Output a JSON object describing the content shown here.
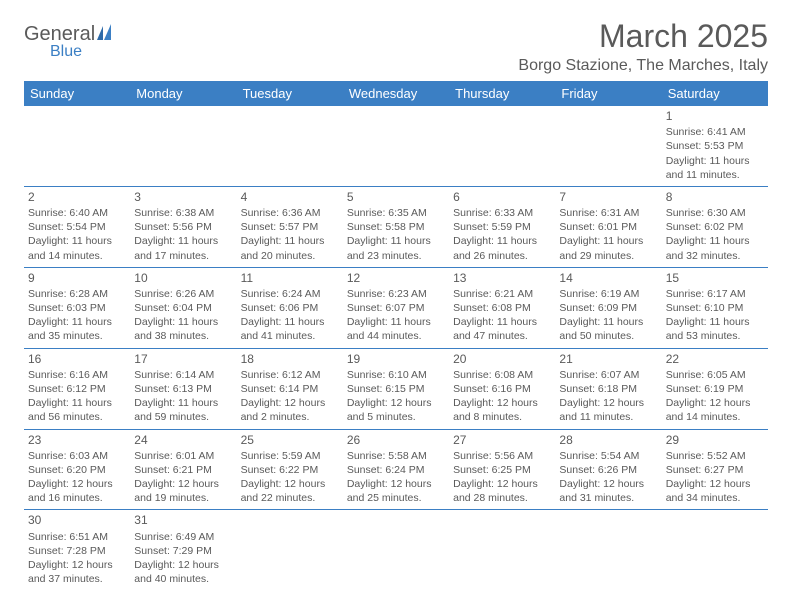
{
  "logo": {
    "text1": "General",
    "text2": "Blue"
  },
  "title": "March 2025",
  "location": "Borgo Stazione, The Marches, Italy",
  "colors": {
    "header_bg": "#3b7fc4",
    "header_text": "#ffffff",
    "body_text": "#5a5a5a",
    "rule": "#3b7fc4",
    "background": "#ffffff"
  },
  "dayHeaders": [
    "Sunday",
    "Monday",
    "Tuesday",
    "Wednesday",
    "Thursday",
    "Friday",
    "Saturday"
  ],
  "weeks": [
    [
      null,
      null,
      null,
      null,
      null,
      null,
      {
        "n": "1",
        "sr": "6:41 AM",
        "ss": "5:53 PM",
        "dl": "11 hours and 11 minutes."
      }
    ],
    [
      {
        "n": "2",
        "sr": "6:40 AM",
        "ss": "5:54 PM",
        "dl": "11 hours and 14 minutes."
      },
      {
        "n": "3",
        "sr": "6:38 AM",
        "ss": "5:56 PM",
        "dl": "11 hours and 17 minutes."
      },
      {
        "n": "4",
        "sr": "6:36 AM",
        "ss": "5:57 PM",
        "dl": "11 hours and 20 minutes."
      },
      {
        "n": "5",
        "sr": "6:35 AM",
        "ss": "5:58 PM",
        "dl": "11 hours and 23 minutes."
      },
      {
        "n": "6",
        "sr": "6:33 AM",
        "ss": "5:59 PM",
        "dl": "11 hours and 26 minutes."
      },
      {
        "n": "7",
        "sr": "6:31 AM",
        "ss": "6:01 PM",
        "dl": "11 hours and 29 minutes."
      },
      {
        "n": "8",
        "sr": "6:30 AM",
        "ss": "6:02 PM",
        "dl": "11 hours and 32 minutes."
      }
    ],
    [
      {
        "n": "9",
        "sr": "6:28 AM",
        "ss": "6:03 PM",
        "dl": "11 hours and 35 minutes."
      },
      {
        "n": "10",
        "sr": "6:26 AM",
        "ss": "6:04 PM",
        "dl": "11 hours and 38 minutes."
      },
      {
        "n": "11",
        "sr": "6:24 AM",
        "ss": "6:06 PM",
        "dl": "11 hours and 41 minutes."
      },
      {
        "n": "12",
        "sr": "6:23 AM",
        "ss": "6:07 PM",
        "dl": "11 hours and 44 minutes."
      },
      {
        "n": "13",
        "sr": "6:21 AM",
        "ss": "6:08 PM",
        "dl": "11 hours and 47 minutes."
      },
      {
        "n": "14",
        "sr": "6:19 AM",
        "ss": "6:09 PM",
        "dl": "11 hours and 50 minutes."
      },
      {
        "n": "15",
        "sr": "6:17 AM",
        "ss": "6:10 PM",
        "dl": "11 hours and 53 minutes."
      }
    ],
    [
      {
        "n": "16",
        "sr": "6:16 AM",
        "ss": "6:12 PM",
        "dl": "11 hours and 56 minutes."
      },
      {
        "n": "17",
        "sr": "6:14 AM",
        "ss": "6:13 PM",
        "dl": "11 hours and 59 minutes."
      },
      {
        "n": "18",
        "sr": "6:12 AM",
        "ss": "6:14 PM",
        "dl": "12 hours and 2 minutes."
      },
      {
        "n": "19",
        "sr": "6:10 AM",
        "ss": "6:15 PM",
        "dl": "12 hours and 5 minutes."
      },
      {
        "n": "20",
        "sr": "6:08 AM",
        "ss": "6:16 PM",
        "dl": "12 hours and 8 minutes."
      },
      {
        "n": "21",
        "sr": "6:07 AM",
        "ss": "6:18 PM",
        "dl": "12 hours and 11 minutes."
      },
      {
        "n": "22",
        "sr": "6:05 AM",
        "ss": "6:19 PM",
        "dl": "12 hours and 14 minutes."
      }
    ],
    [
      {
        "n": "23",
        "sr": "6:03 AM",
        "ss": "6:20 PM",
        "dl": "12 hours and 16 minutes."
      },
      {
        "n": "24",
        "sr": "6:01 AM",
        "ss": "6:21 PM",
        "dl": "12 hours and 19 minutes."
      },
      {
        "n": "25",
        "sr": "5:59 AM",
        "ss": "6:22 PM",
        "dl": "12 hours and 22 minutes."
      },
      {
        "n": "26",
        "sr": "5:58 AM",
        "ss": "6:24 PM",
        "dl": "12 hours and 25 minutes."
      },
      {
        "n": "27",
        "sr": "5:56 AM",
        "ss": "6:25 PM",
        "dl": "12 hours and 28 minutes."
      },
      {
        "n": "28",
        "sr": "5:54 AM",
        "ss": "6:26 PM",
        "dl": "12 hours and 31 minutes."
      },
      {
        "n": "29",
        "sr": "5:52 AM",
        "ss": "6:27 PM",
        "dl": "12 hours and 34 minutes."
      }
    ],
    [
      {
        "n": "30",
        "sr": "6:51 AM",
        "ss": "7:28 PM",
        "dl": "12 hours and 37 minutes."
      },
      {
        "n": "31",
        "sr": "6:49 AM",
        "ss": "7:29 PM",
        "dl": "12 hours and 40 minutes."
      },
      null,
      null,
      null,
      null,
      null
    ]
  ],
  "labels": {
    "sunrise": "Sunrise:",
    "sunset": "Sunset:",
    "daylight": "Daylight:"
  }
}
